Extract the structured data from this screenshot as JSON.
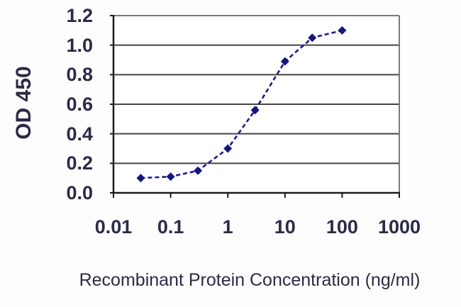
{
  "chart_data": {
    "type": "line",
    "title": "",
    "xlabel": "Recombinant Protein Concentration (ng/ml)",
    "ylabel": "OD 450",
    "x_scale": "log",
    "x": [
      0.03,
      0.1,
      0.3,
      1,
      3,
      10,
      30,
      100
    ],
    "y": [
      0.1,
      0.11,
      0.15,
      0.3,
      0.56,
      0.89,
      1.05,
      1.1
    ],
    "xlim": [
      0.01,
      1000
    ],
    "ylim": [
      0.0,
      1.2
    ],
    "x_tick_labels": [
      "0.01",
      "0.1",
      "1",
      "10",
      "100",
      "1000"
    ],
    "y_tick_labels": [
      "0.0",
      "0.2",
      "0.4",
      "0.6",
      "0.8",
      "1.0",
      "1.2"
    ],
    "y_tick_step": 0.2,
    "grid": "horizontal",
    "legend": "none",
    "line_style": "dashed",
    "marker": "diamond",
    "colors": {
      "line": "#1b1b8f",
      "marker": "#15157d",
      "gridline": "#454545",
      "plot_border": "#7a7a7a",
      "axis": "#1c1c1c",
      "text": "#2b2b47",
      "background": "#fdfdfd"
    }
  }
}
